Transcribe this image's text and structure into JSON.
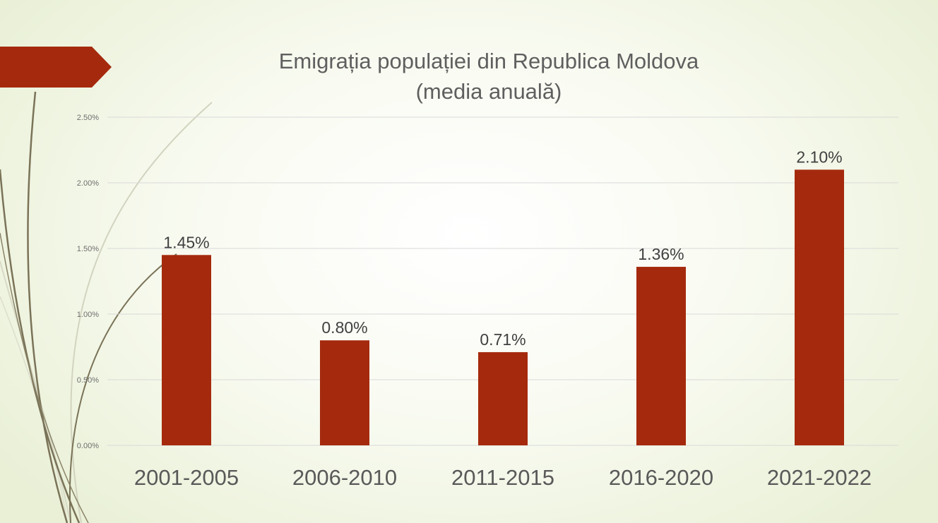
{
  "theme": {
    "accent": "#a52a0d",
    "grid": "#d9d9d9",
    "curve_dark": "#7a7358",
    "curve_light": "#d2d4bf"
  },
  "chart_data": {
    "type": "bar",
    "title_line1": "Emigrația populației din Republica Moldova",
    "title_line2": "(media anuală)",
    "xlabel": "",
    "ylabel": "",
    "categories": [
      "2001-2005",
      "2006-2010",
      "2011-2015",
      "2016-2020",
      "2021-2022"
    ],
    "series": [
      {
        "values": [
          1.45,
          0.8,
          0.71,
          1.36,
          2.1
        ],
        "value_labels": [
          "1.45%",
          "0.80%",
          "0.71%",
          "1.36%",
          "2.10%"
        ],
        "color": "#a52a0d"
      }
    ],
    "ylim": [
      0,
      2.5
    ],
    "y_ticks": [
      0,
      0.5,
      1.0,
      1.5,
      2.0,
      2.5
    ],
    "y_tick_labels": [
      "0.00%",
      "0.50%",
      "1.00%",
      "1.50%",
      "2.00%",
      "2.50%"
    ],
    "grid": true,
    "legend": "none"
  }
}
